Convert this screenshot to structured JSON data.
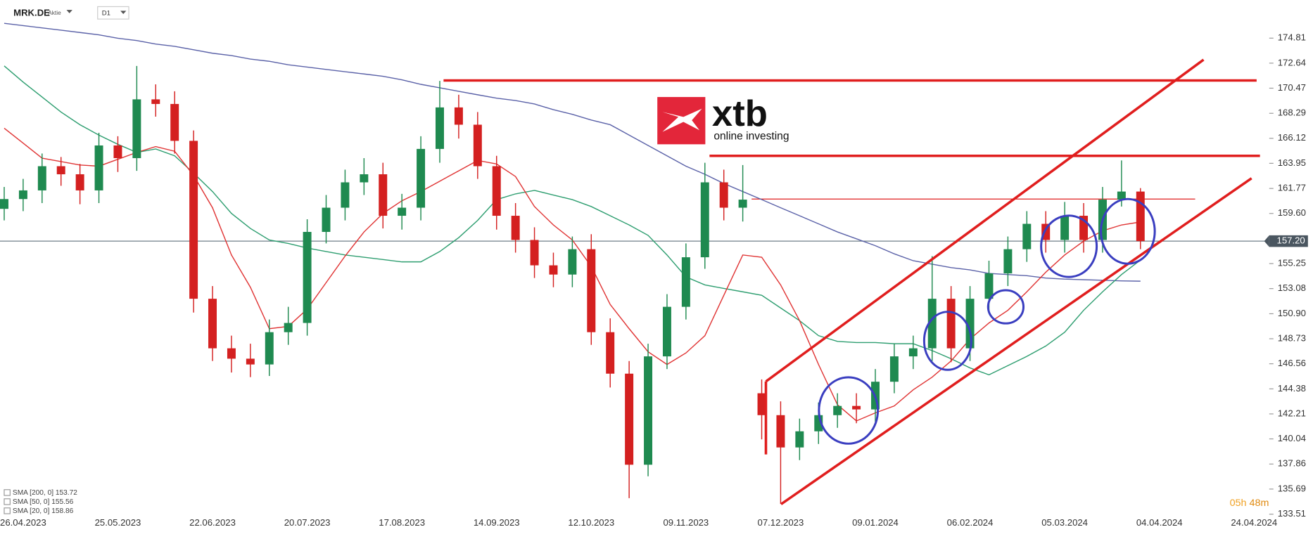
{
  "chart_data": {
    "type": "candlestick",
    "symbol": "MRK.DE",
    "instrument_type": "Aktie",
    "interval": "D1",
    "categories": [
      null,
      "26.04.2023",
      null,
      null,
      null,
      null,
      "25.05.2023",
      null,
      null,
      null,
      null,
      "22.06.2023",
      null,
      null,
      null,
      null,
      "20.07.2023",
      null,
      null,
      null,
      null,
      "17.08.2023",
      null,
      null,
      null,
      null,
      "14.09.2023",
      null,
      null,
      null,
      null,
      "12.10.2023",
      null,
      null,
      null,
      null,
      "09.11.2023",
      null,
      null,
      null,
      null,
      "07.12.2023",
      null,
      null,
      null,
      null,
      "09.01.2024",
      null,
      null,
      null,
      null,
      "06.02.2024",
      null,
      null,
      null,
      null,
      "05.03.2024",
      null,
      null,
      null,
      null,
      "04.04.2024",
      null,
      null,
      null,
      null,
      "24.04.2024"
    ],
    "open": [
      160.0,
      160.85,
      161.6,
      163.7,
      163.0,
      161.6,
      165.5,
      164.4,
      169.5,
      169.1,
      165.9,
      152.2,
      147.9,
      147.0,
      146.5,
      149.3,
      150.1,
      158.0,
      160.1,
      162.3,
      163.0,
      159.4,
      160.1,
      165.2,
      168.8,
      167.3,
      163.7,
      159.4,
      157.3,
      155.1,
      154.3,
      156.5,
      149.3,
      145.7,
      137.8,
      147.2,
      151.5,
      155.8,
      162.3,
      160.1,
      144.0,
      142.1,
      139.3,
      140.7,
      142.1,
      142.9,
      142.6,
      145.0,
      147.2,
      147.9,
      152.2,
      147.9,
      152.2,
      154.4,
      156.5,
      158.7,
      157.3,
      159.4,
      157.3,
      160.8,
      161.5,
      null,
      null,
      null,
      null,
      null,
      null
    ],
    "high": [
      161.9,
      162.6,
      164.8,
      164.5,
      163.9,
      166.6,
      166.3,
      172.4,
      170.8,
      170.2,
      166.8,
      153.3,
      149.0,
      148.3,
      150.4,
      151.5,
      159.1,
      161.2,
      163.4,
      164.4,
      164.0,
      161.3,
      166.3,
      171.1,
      169.9,
      168.4,
      164.6,
      160.5,
      158.4,
      156.2,
      157.6,
      157.8,
      150.5,
      146.8,
      148.3,
      152.6,
      157.0,
      164.0,
      163.4,
      163.8,
      145.2,
      143.3,
      141.8,
      143.2,
      144.0,
      144.0,
      146.1,
      148.3,
      149.0,
      155.9,
      153.3,
      153.3,
      155.5,
      157.6,
      159.8,
      159.8,
      160.6,
      160.5,
      161.9,
      164.2,
      161.8,
      null,
      null,
      null,
      null,
      null,
      null
    ],
    "low": [
      159.0,
      159.8,
      160.5,
      162.0,
      160.4,
      160.5,
      163.2,
      163.3,
      168.0,
      164.8,
      151.0,
      146.8,
      145.8,
      145.4,
      145.5,
      148.2,
      149.0,
      157.0,
      159.0,
      161.2,
      158.3,
      158.2,
      159.0,
      164.0,
      166.1,
      162.6,
      158.2,
      156.2,
      154.0,
      153.2,
      153.2,
      148.2,
      144.5,
      134.9,
      136.8,
      146.1,
      150.4,
      154.8,
      159.0,
      158.9,
      140.0,
      134.4,
      138.2,
      139.6,
      141.0,
      141.4,
      141.5,
      144.0,
      146.1,
      146.8,
      146.7,
      146.8,
      151.1,
      153.3,
      155.4,
      156.2,
      156.2,
      156.2,
      156.2,
      160.2,
      156.5,
      null,
      null,
      null,
      null,
      null,
      null
    ],
    "close": [
      160.85,
      161.6,
      163.7,
      163.0,
      161.6,
      165.5,
      164.4,
      169.5,
      169.1,
      165.9,
      152.2,
      147.9,
      147.0,
      146.5,
      149.3,
      150.1,
      158.0,
      160.1,
      162.3,
      163.0,
      159.4,
      160.1,
      165.2,
      168.8,
      167.3,
      163.7,
      159.4,
      157.3,
      155.1,
      154.3,
      156.5,
      149.3,
      145.7,
      137.8,
      147.2,
      151.5,
      155.8,
      162.3,
      160.1,
      160.8,
      142.1,
      139.3,
      140.7,
      142.1,
      142.9,
      142.6,
      145.0,
      147.2,
      147.9,
      152.2,
      147.9,
      152.2,
      154.4,
      156.5,
      158.7,
      157.3,
      159.4,
      157.3,
      160.8,
      161.5,
      157.2,
      null,
      null,
      null,
      null,
      null,
      null
    ],
    "color_up": "#1f8a50",
    "color_down": "#d42020",
    "series": [
      {
        "name": "SMA [200, 0]",
        "last": 153.72,
        "color": "#5b62a8",
        "values": [
          176.1,
          175.9,
          175.7,
          175.5,
          175.3,
          175.1,
          174.8,
          174.6,
          174.3,
          174.1,
          173.8,
          173.5,
          173.3,
          173.0,
          172.8,
          172.5,
          172.3,
          172.1,
          171.9,
          171.7,
          171.5,
          171.2,
          170.8,
          170.5,
          170.2,
          169.9,
          169.6,
          169.4,
          169.1,
          168.6,
          168.2,
          167.7,
          167.3,
          166.4,
          165.5,
          164.6,
          163.7,
          163.0,
          162.2,
          161.5,
          160.8,
          160.1,
          159.4,
          158.7,
          158.0,
          157.4,
          156.8,
          156.1,
          155.5,
          155.2,
          154.9,
          154.7,
          154.4,
          154.3,
          154.2,
          154.0,
          153.9,
          153.85,
          153.8,
          153.75,
          153.72,
          null,
          null,
          null,
          null,
          null,
          null
        ]
      },
      {
        "name": "SMA [50, 0]",
        "last": 155.56,
        "color": "#2e9e70",
        "values": [
          172.4,
          171.0,
          169.7,
          168.4,
          167.3,
          166.4,
          165.6,
          164.9,
          165.2,
          164.6,
          163.1,
          161.5,
          159.6,
          158.3,
          157.3,
          157.0,
          156.6,
          156.3,
          156.0,
          155.8,
          155.6,
          155.4,
          155.4,
          156.3,
          157.5,
          159.0,
          160.8,
          161.3,
          161.6,
          161.2,
          160.8,
          160.2,
          159.4,
          158.6,
          157.7,
          156.0,
          154.1,
          153.4,
          153.1,
          152.8,
          152.5,
          151.4,
          150.3,
          149.0,
          148.5,
          148.4,
          148.4,
          148.3,
          148.3,
          147.7,
          147.0,
          146.2,
          145.6,
          146.4,
          147.2,
          148.1,
          149.3,
          151.2,
          152.8,
          154.3,
          155.56,
          null,
          null,
          null,
          null,
          null,
          null
        ]
      },
      {
        "name": "SMA [20, 0]",
        "last": 158.86,
        "color": "#e03535",
        "values": [
          167.0,
          165.7,
          164.4,
          164.1,
          163.8,
          163.7,
          164.3,
          164.9,
          165.4,
          165.0,
          162.9,
          160.1,
          156.0,
          153.2,
          149.6,
          149.8,
          151.3,
          153.6,
          155.9,
          158.0,
          159.6,
          160.7,
          161.5,
          162.4,
          163.3,
          164.2,
          163.9,
          162.8,
          160.2,
          158.6,
          157.3,
          155.0,
          151.7,
          149.6,
          147.6,
          146.5,
          147.5,
          149.0,
          152.5,
          156.0,
          155.8,
          153.4,
          150.3,
          146.5,
          143.0,
          141.6,
          142.3,
          142.9,
          144.3,
          145.4,
          146.8,
          148.7,
          150.1,
          151.2,
          152.8,
          154.5,
          156.0,
          157.2,
          158.1,
          158.6,
          158.86,
          null,
          null,
          null,
          null,
          null,
          null
        ]
      }
    ],
    "ylim": [
      133.37,
      178.12
    ],
    "yticks": [
      174.81,
      172.64,
      170.47,
      168.29,
      166.12,
      163.95,
      161.77,
      {
        "value": 159.6,
        "label": "159.60"
      },
      155.25,
      153.08,
      {
        "value": 150.9,
        "label": "150.90"
      },
      148.73,
      146.56,
      144.38,
      142.21,
      140.04,
      137.86,
      135.69,
      133.51
    ],
    "last_price": {
      "value": 157.2,
      "label": "157.20"
    },
    "levels": [
      171.14,
      164.6,
      160.85
    ],
    "level_color": "#e01e1e",
    "logo": {
      "name": "xtb",
      "tagline": "online investing"
    },
    "timer": {
      "hours": "05h",
      "minutes": "48m"
    }
  }
}
